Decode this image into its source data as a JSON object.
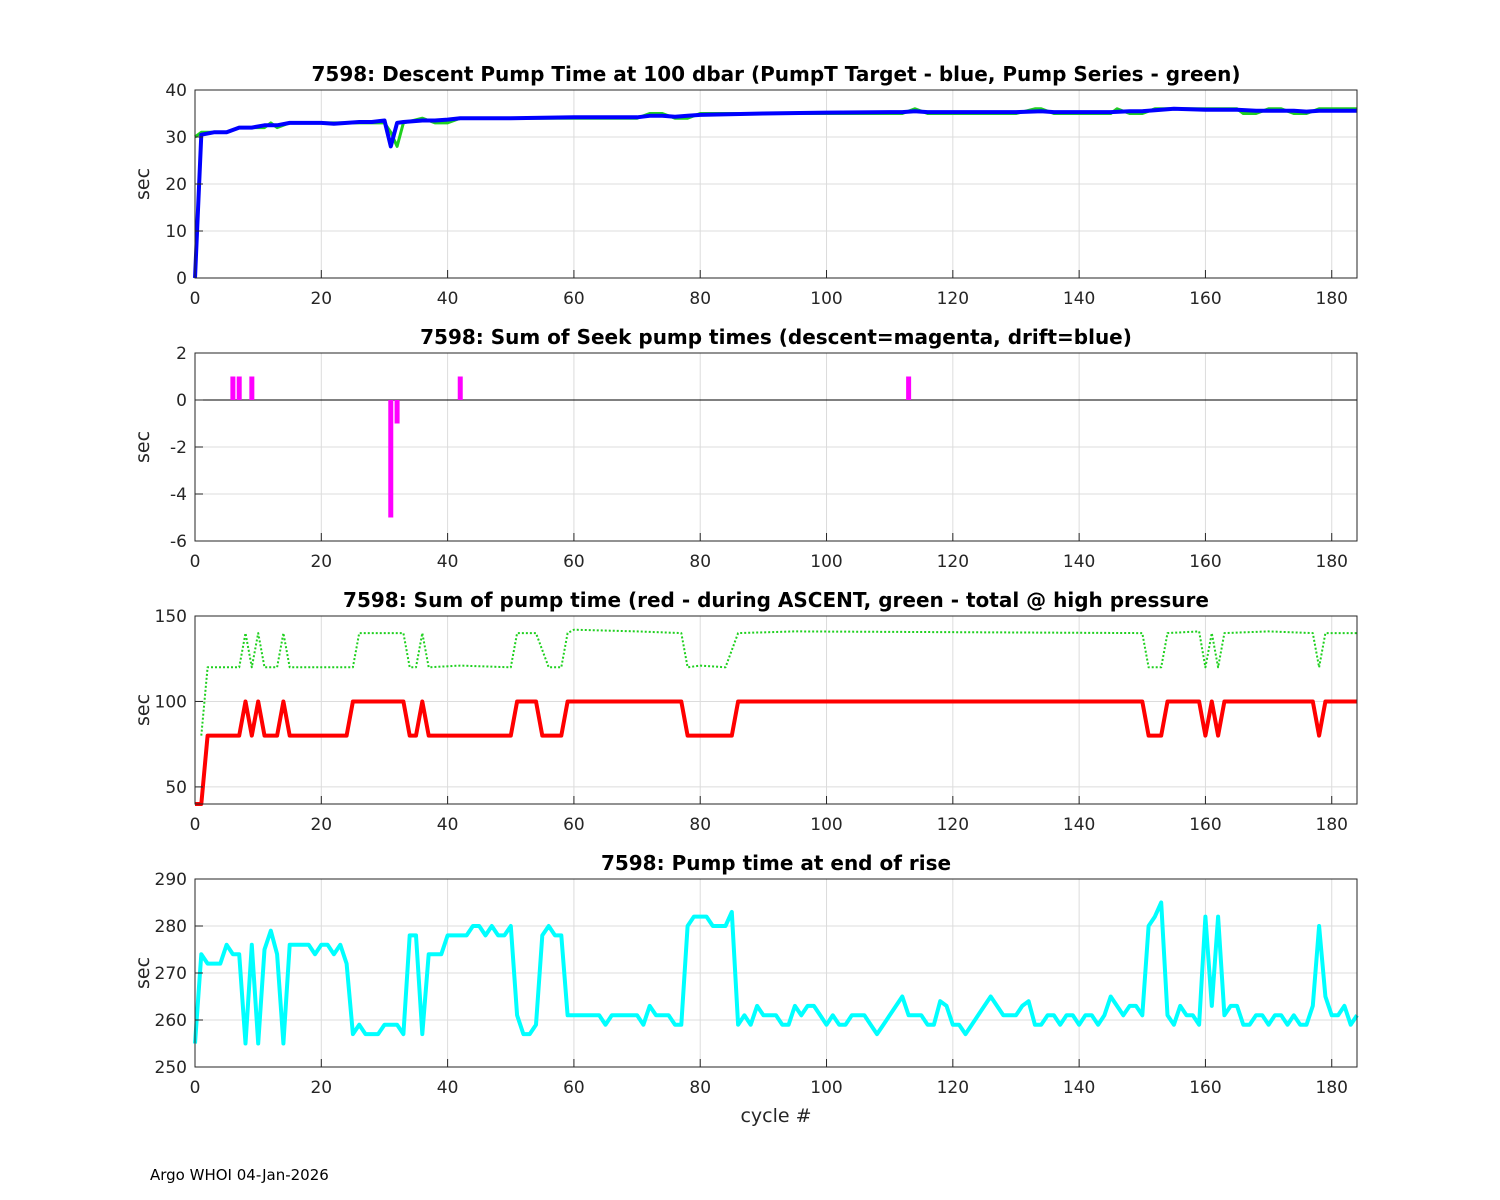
{
  "footer": "Argo WHOI 04-Jan-2026",
  "chart_data": [
    {
      "type": "line",
      "title": "7598: Descent Pump Time at 100 dbar (PumpT Target - blue, Pump Series - green)",
      "ylabel": "sec",
      "xlabel": "",
      "xlim": [
        0,
        184
      ],
      "ylim": [
        0,
        40
      ],
      "xticks": [
        0,
        20,
        40,
        60,
        80,
        100,
        120,
        140,
        160,
        180
      ],
      "yticks": [
        0,
        10,
        20,
        30,
        40
      ],
      "grid": true,
      "series": [
        {
          "color": "#1fd01f",
          "style": "solid",
          "width": 3,
          "x": [
            0,
            1,
            3,
            5,
            7,
            9,
            11,
            12,
            13,
            15,
            20,
            22,
            24,
            26,
            28,
            30,
            31,
            32,
            33,
            36,
            38,
            40,
            42,
            50,
            60,
            70,
            72,
            74,
            76,
            78,
            80,
            90,
            100,
            110,
            112,
            114,
            116,
            120,
            130,
            133,
            134,
            136,
            140,
            145,
            146,
            148,
            150,
            152,
            155,
            160,
            165,
            166,
            168,
            170,
            172,
            174,
            176,
            178,
            180,
            184
          ],
          "y": [
            30,
            31,
            31,
            31,
            32,
            32,
            32,
            33,
            32,
            33,
            33,
            33,
            33,
            33,
            33,
            33,
            31,
            28,
            33,
            34,
            33,
            33,
            34,
            34,
            34,
            34,
            35,
            35,
            34,
            34,
            35,
            35,
            35,
            35,
            35,
            36,
            35,
            35,
            35,
            36,
            36,
            35,
            35,
            35,
            36,
            35,
            35,
            36,
            36,
            36,
            36,
            35,
            35,
            36,
            36,
            35,
            35,
            36,
            36,
            36
          ]
        },
        {
          "color": "#0000ff",
          "style": "solid",
          "width": 4,
          "x": [
            0,
            1,
            3,
            5,
            7,
            9,
            11,
            13,
            15,
            20,
            22,
            24,
            26,
            28,
            30,
            31,
            32,
            33,
            36,
            38,
            40,
            42,
            50,
            60,
            70,
            72,
            74,
            76,
            78,
            80,
            90,
            100,
            110,
            112,
            114,
            116,
            120,
            130,
            134,
            136,
            140,
            145,
            148,
            150,
            152,
            155,
            160,
            165,
            168,
            170,
            172,
            174,
            176,
            178,
            180,
            184
          ],
          "y": [
            0,
            30.5,
            31,
            31,
            32,
            32,
            32.5,
            32.5,
            33,
            33,
            32.8,
            33,
            33.2,
            33.2,
            33.5,
            28,
            33,
            33.2,
            33.5,
            33.5,
            33.7,
            34,
            34,
            34.2,
            34.2,
            34.5,
            34.5,
            34.3,
            34.5,
            34.7,
            35,
            35.2,
            35.3,
            35.3,
            35.5,
            35.3,
            35.3,
            35.3,
            35.5,
            35.3,
            35.3,
            35.3,
            35.5,
            35.5,
            35.7,
            36,
            35.8,
            35.8,
            35.6,
            35.6,
            35.6,
            35.6,
            35.4,
            35.6,
            35.6,
            35.6
          ]
        }
      ]
    },
    {
      "type": "bar",
      "title": "7598: Sum of Seek pump times (descent=magenta, drift=blue)",
      "ylabel": "sec",
      "xlabel": "",
      "xlim": [
        0,
        184
      ],
      "ylim": [
        -6,
        2
      ],
      "xticks": [
        0,
        20,
        40,
        60,
        80,
        100,
        120,
        140,
        160,
        180
      ],
      "yticks": [
        -6,
        -4,
        -2,
        0,
        2
      ],
      "grid": true,
      "zero_line": true,
      "series": [
        {
          "color": "#ff00ff",
          "x": [
            6,
            7,
            9,
            31,
            32,
            42,
            113
          ],
          "y": [
            1,
            1,
            1,
            -5,
            -1,
            1,
            1
          ]
        }
      ]
    },
    {
      "type": "line",
      "title": "7598: Sum of pump time (red - during ASCENT, green - total @ high pressure",
      "ylabel": "sec",
      "xlabel": "",
      "xlim": [
        0,
        184
      ],
      "ylim": [
        40,
        150
      ],
      "xticks": [
        0,
        20,
        40,
        60,
        80,
        100,
        120,
        140,
        160,
        180
      ],
      "yticks": [
        50,
        100,
        150
      ],
      "grid": true,
      "series": [
        {
          "color": "#1fd01f",
          "style": "dotted",
          "width": 2,
          "x": [
            1,
            2,
            7,
            8,
            9,
            10,
            11,
            13,
            14,
            15,
            25,
            26,
            33,
            34,
            35,
            36,
            37,
            42,
            50,
            51,
            53,
            54,
            56,
            58,
            59,
            60,
            70,
            77,
            78,
            80,
            84,
            86,
            95,
            150,
            151,
            153,
            154,
            159,
            160,
            161,
            162,
            163,
            170,
            177,
            178,
            179,
            184
          ],
          "y": [
            80,
            120,
            120,
            140,
            120,
            140,
            120,
            120,
            140,
            120,
            120,
            140,
            140,
            120,
            120,
            140,
            120,
            121,
            120,
            140,
            140,
            140,
            120,
            120,
            140,
            142,
            141,
            140,
            120,
            121,
            120,
            140,
            141,
            140,
            120,
            120,
            140,
            141,
            120,
            140,
            120,
            140,
            141,
            140,
            120,
            140,
            140
          ]
        },
        {
          "color": "#ff0000",
          "style": "solid",
          "width": 4,
          "x": [
            0,
            1,
            2,
            7,
            8,
            9,
            10,
            11,
            13,
            14,
            15,
            24,
            25,
            33,
            34,
            35,
            36,
            37,
            50,
            51,
            54,
            55,
            58,
            59,
            77,
            78,
            85,
            86,
            150,
            151,
            153,
            154,
            159,
            160,
            161,
            162,
            163,
            177,
            178,
            179,
            184
          ],
          "y": [
            40,
            40,
            80,
            80,
            100,
            80,
            100,
            80,
            80,
            100,
            80,
            80,
            100,
            100,
            80,
            80,
            100,
            80,
            80,
            100,
            100,
            80,
            80,
            100,
            100,
            80,
            80,
            100,
            100,
            80,
            80,
            100,
            100,
            80,
            100,
            80,
            100,
            100,
            80,
            100,
            100
          ]
        }
      ]
    },
    {
      "type": "line",
      "title": "7598: Pump time at end of rise",
      "ylabel": "sec",
      "xlabel": "cycle #",
      "xlim": [
        0,
        184
      ],
      "ylim": [
        250,
        290
      ],
      "xticks": [
        0,
        20,
        40,
        60,
        80,
        100,
        120,
        140,
        160,
        180
      ],
      "yticks": [
        250,
        260,
        270,
        280,
        290
      ],
      "grid": true,
      "series": [
        {
          "color": "#00ffff",
          "style": "solid",
          "width": 4,
          "x": [
            0,
            1,
            2,
            3,
            4,
            5,
            6,
            7,
            8,
            9,
            10,
            11,
            12,
            13,
            14,
            15,
            16,
            17,
            18,
            19,
            20,
            21,
            22,
            23,
            24,
            25,
            26,
            27,
            28,
            29,
            30,
            31,
            32,
            33,
            34,
            35,
            36,
            37,
            38,
            39,
            40,
            41,
            42,
            43,
            44,
            45,
            46,
            47,
            48,
            49,
            50,
            51,
            52,
            53,
            54,
            55,
            56,
            57,
            58,
            59,
            60,
            61,
            62,
            63,
            64,
            65,
            66,
            67,
            68,
            69,
            70,
            71,
            72,
            73,
            74,
            75,
            76,
            77,
            78,
            79,
            80,
            81,
            82,
            83,
            84,
            85,
            86,
            87,
            88,
            89,
            90,
            91,
            92,
            93,
            94,
            95,
            96,
            97,
            98,
            99,
            100,
            101,
            102,
            103,
            104,
            105,
            106,
            107,
            108,
            109,
            110,
            111,
            112,
            113,
            114,
            115,
            116,
            117,
            118,
            119,
            120,
            121,
            122,
            123,
            124,
            125,
            126,
            127,
            128,
            129,
            130,
            131,
            132,
            133,
            134,
            135,
            136,
            137,
            138,
            139,
            140,
            141,
            142,
            143,
            144,
            145,
            146,
            147,
            148,
            149,
            150,
            151,
            152,
            153,
            154,
            155,
            156,
            157,
            158,
            159,
            160,
            161,
            162,
            163,
            164,
            165,
            166,
            167,
            168,
            169,
            170,
            171,
            172,
            173,
            174,
            175,
            176,
            177,
            178,
            179,
            180,
            181,
            182,
            183,
            184
          ],
          "y": [
            255,
            274,
            272,
            272,
            272,
            276,
            274,
            274,
            255,
            276,
            255,
            275,
            279,
            274,
            255,
            276,
            276,
            276,
            276,
            274,
            276,
            276,
            274,
            276,
            272,
            257,
            259,
            257,
            257,
            257,
            259,
            259,
            259,
            257,
            278,
            278,
            257,
            274,
            274,
            274,
            278,
            278,
            278,
            278,
            280,
            280,
            278,
            280,
            278,
            278,
            280,
            261,
            257,
            257,
            259,
            278,
            280,
            278,
            278,
            261,
            261,
            261,
            261,
            261,
            261,
            259,
            261,
            261,
            261,
            261,
            261,
            259,
            263,
            261,
            261,
            261,
            259,
            259,
            280,
            282,
            282,
            282,
            280,
            280,
            280,
            283,
            259,
            261,
            259,
            263,
            261,
            261,
            261,
            259,
            259,
            263,
            261,
            263,
            263,
            261,
            259,
            261,
            259,
            259,
            261,
            261,
            261,
            259,
            257,
            259,
            261,
            263,
            265,
            261,
            261,
            261,
            259,
            259,
            264,
            263,
            259,
            259,
            257,
            259,
            261,
            263,
            265,
            263,
            261,
            261,
            261,
            263,
            264,
            259,
            259,
            261,
            261,
            259,
            261,
            261,
            259,
            261,
            261,
            259,
            261,
            265,
            263,
            261,
            263,
            263,
            261,
            280,
            282,
            285,
            261,
            259,
            263,
            261,
            261,
            259,
            282,
            263,
            282,
            261,
            263,
            263,
            259,
            259,
            261,
            261,
            259,
            261,
            261,
            259,
            261,
            259,
            259,
            263,
            280,
            265,
            261,
            261,
            263,
            259,
            261
          ]
        }
      ]
    }
  ]
}
